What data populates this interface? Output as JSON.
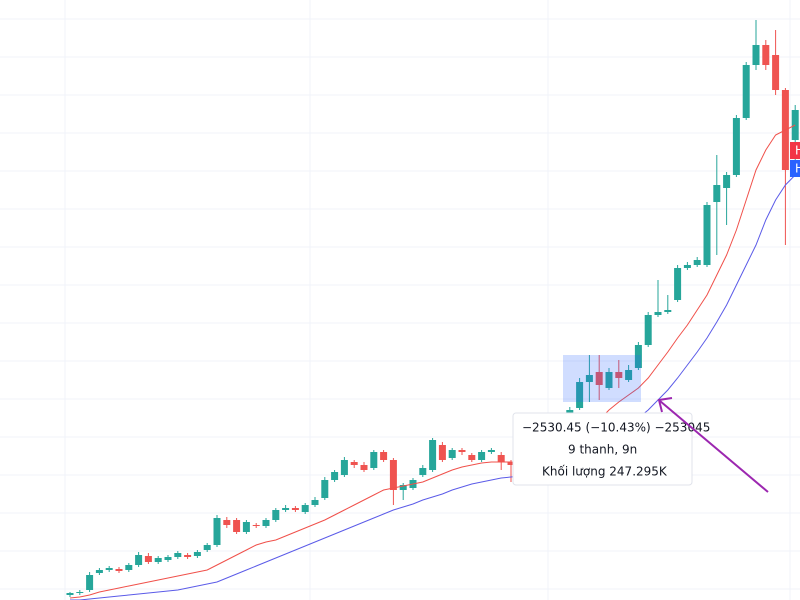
{
  "chart_data": {
    "type": "candlestick",
    "up_color": "#26a69a",
    "down_color": "#ef5350",
    "ylim": [
      0,
      600
    ],
    "open": [
      5,
      7,
      10,
      27,
      30,
      31,
      30,
      35,
      44,
      38,
      40,
      43,
      45,
      44,
      50,
      55,
      80,
      80,
      68,
      75,
      74,
      80,
      90,
      92,
      88,
      95,
      102,
      120,
      125,
      138,
      135,
      132,
      148,
      140,
      110,
      112,
      125,
      130,
      155,
      142,
      150,
      145,
      140,
      148,
      145,
      138,
      135,
      130,
      142,
      148,
      150,
      155,
      192,
      218,
      228,
      212,
      228,
      220,
      232,
      255,
      285,
      288,
      300,
      332,
      335,
      335,
      398,
      412,
      425,
      482,
      535,
      555,
      545,
      510,
      460
    ],
    "close": [
      7,
      8,
      25,
      30,
      32,
      29,
      35,
      45,
      38,
      42,
      43,
      47,
      43,
      48,
      55,
      82,
      75,
      68,
      78,
      74,
      80,
      90,
      92,
      90,
      95,
      100,
      120,
      128,
      140,
      135,
      130,
      148,
      140,
      110,
      115,
      120,
      132,
      160,
      140,
      150,
      148,
      140,
      148,
      150,
      138,
      135,
      130,
      142,
      148,
      150,
      155,
      190,
      218,
      225,
      215,
      228,
      222,
      230,
      255,
      285,
      288,
      290,
      332,
      335,
      340,
      395,
      415,
      425,
      482,
      535,
      555,
      535,
      510,
      430,
      490
    ],
    "high": [
      8,
      10,
      28,
      32,
      34,
      33,
      37,
      48,
      47,
      44,
      45,
      49,
      47,
      50,
      57,
      85,
      83,
      82,
      80,
      77,
      82,
      92,
      95,
      94,
      97,
      103,
      123,
      130,
      143,
      140,
      138,
      150,
      150,
      142,
      117,
      122,
      135,
      162,
      158,
      152,
      152,
      147,
      150,
      152,
      148,
      140,
      137,
      144,
      150,
      152,
      157,
      193,
      222,
      245,
      245,
      232,
      240,
      235,
      258,
      288,
      320,
      305,
      335,
      338,
      343,
      398,
      445,
      428,
      485,
      538,
      580,
      560,
      570,
      512,
      495
    ],
    "low": [
      3,
      5,
      8,
      25,
      28,
      27,
      28,
      33,
      36,
      36,
      38,
      41,
      41,
      42,
      48,
      53,
      72,
      66,
      66,
      72,
      72,
      78,
      88,
      88,
      86,
      93,
      100,
      118,
      123,
      132,
      128,
      130,
      138,
      95,
      100,
      110,
      123,
      128,
      138,
      140,
      145,
      138,
      138,
      146,
      130,
      118,
      128,
      128,
      140,
      146,
      148,
      153,
      190,
      198,
      200,
      210,
      212,
      218,
      230,
      253,
      283,
      286,
      298,
      330,
      333,
      333,
      345,
      375,
      423,
      480,
      530,
      530,
      505,
      355,
      440
    ],
    "series": [
      {
        "name": "MA fast",
        "color": "#f0504a",
        "values": [
          2,
          3,
          5,
          8,
          10,
          12,
          14,
          16,
          18,
          20,
          22,
          24,
          26,
          28,
          30,
          35,
          40,
          45,
          50,
          55,
          58,
          60,
          64,
          68,
          72,
          76,
          80,
          85,
          90,
          95,
          100,
          105,
          110,
          112,
          114,
          116,
          118,
          122,
          126,
          130,
          133,
          135,
          137,
          138,
          138,
          138,
          137,
          137,
          138,
          140,
          142,
          150,
          160,
          170,
          180,
          190,
          198,
          205,
          212,
          222,
          235,
          248,
          262,
          275,
          290,
          305,
          325,
          345,
          370,
          400,
          430,
          450,
          465,
          470,
          475
        ]
      },
      {
        "name": "MA slow",
        "color": "#5b5be8",
        "values": [
          0,
          0,
          1,
          2,
          3,
          4,
          5,
          6,
          7,
          8,
          9,
          10,
          12,
          14,
          16,
          18,
          22,
          26,
          30,
          34,
          38,
          42,
          46,
          50,
          54,
          58,
          62,
          66,
          70,
          74,
          78,
          82,
          86,
          90,
          93,
          96,
          100,
          103,
          106,
          110,
          113,
          116,
          118,
          120,
          122,
          123,
          124,
          125,
          126,
          127,
          128,
          132,
          138,
          145,
          152,
          160,
          168,
          175,
          182,
          190,
          200,
          210,
          222,
          235,
          248,
          262,
          278,
          295,
          315,
          335,
          355,
          380,
          400,
          415,
          425
        ]
      }
    ],
    "price_labels": [
      "H",
      "H"
    ],
    "tooltip": [
      "−2530.45 (−10.43%) −253045",
      "9 thanh, 9n",
      "Khối lượng 247.295K"
    ]
  }
}
